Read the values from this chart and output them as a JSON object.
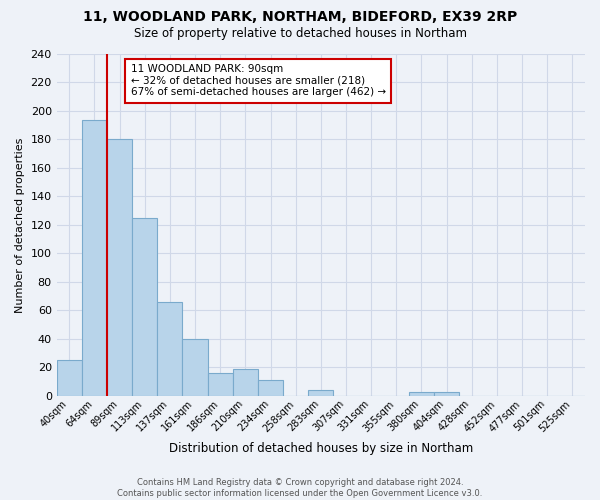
{
  "title1": "11, WOODLAND PARK, NORTHAM, BIDEFORD, EX39 2RP",
  "title2": "Size of property relative to detached houses in Northam",
  "xlabel": "Distribution of detached houses by size in Northam",
  "ylabel": "Number of detached properties",
  "bin_labels": [
    "40sqm",
    "64sqm",
    "89sqm",
    "113sqm",
    "137sqm",
    "161sqm",
    "186sqm",
    "210sqm",
    "234sqm",
    "258sqm",
    "283sqm",
    "307sqm",
    "331sqm",
    "355sqm",
    "380sqm",
    "404sqm",
    "428sqm",
    "452sqm",
    "477sqm",
    "501sqm",
    "525sqm"
  ],
  "bar_values": [
    25,
    194,
    180,
    125,
    66,
    40,
    16,
    19,
    11,
    0,
    4,
    0,
    0,
    0,
    3,
    3,
    0,
    0,
    0,
    0,
    0
  ],
  "bar_color": "#b8d4ea",
  "bar_edge_color": "#7aaacc",
  "red_line_index": 2,
  "annotation_title": "11 WOODLAND PARK: 90sqm",
  "annotation_line1": "← 32% of detached houses are smaller (218)",
  "annotation_line2": "67% of semi-detached houses are larger (462) →",
  "annotation_box_color": "#ffffff",
  "annotation_border_color": "#cc0000",
  "footer1": "Contains HM Land Registry data © Crown copyright and database right 2024.",
  "footer2": "Contains public sector information licensed under the Open Government Licence v3.0.",
  "ylim": [
    0,
    240
  ],
  "yticks": [
    0,
    20,
    40,
    60,
    80,
    100,
    120,
    140,
    160,
    180,
    200,
    220,
    240
  ],
  "bg_color": "#eef2f8",
  "grid_color": "#d0d8e8"
}
